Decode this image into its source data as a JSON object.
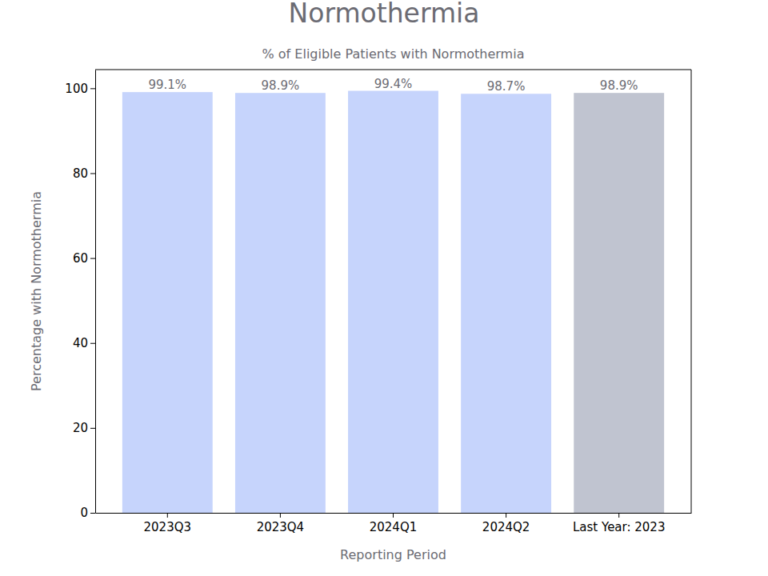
{
  "chart_data": {
    "type": "bar",
    "title": "Normothermia",
    "subtitle": "% of Eligible Patients with Normothermia",
    "x_label": "Reporting Period",
    "y_label": "Percentage with Normothermia",
    "categories": [
      "2023Q3",
      "2023Q4",
      "2024Q1",
      "2024Q2",
      "Last Year: 2023"
    ],
    "values": [
      99.1,
      98.9,
      99.4,
      98.7,
      98.9
    ],
    "value_labels": [
      "99.1%",
      "98.9%",
      "99.4%",
      "98.7%",
      "98.9%"
    ],
    "colors": [
      "#c6d4fc",
      "#c6d4fc",
      "#c6d4fc",
      "#c6d4fc",
      "#c0c4d0"
    ],
    "ylim": [
      0,
      104.4
    ],
    "yticks": [
      0,
      20,
      40,
      60,
      80,
      100
    ],
    "grid": false,
    "data_labels": true
  }
}
